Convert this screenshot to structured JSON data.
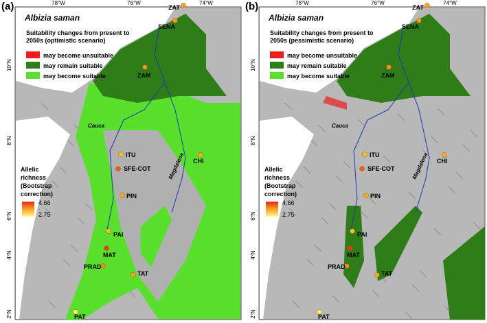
{
  "panels": [
    {
      "label": "(a)",
      "species": "Albizia saman",
      "legend_title": [
        "Suitability changes from present to",
        "2050s (optimistic scenario)"
      ],
      "legend_items": [
        "may become unsuitable",
        "may remain suitable",
        "may become suitable"
      ],
      "legend_colors": [
        "#ee1c1c",
        "#2e7d18",
        "#58e02c"
      ],
      "richness_title": [
        "Allelic",
        "richness",
        "(Bootstrap",
        "correction)"
      ],
      "richness_max": 4.66,
      "richness_min": 2.75,
      "rivers": [
        "Cauca",
        "Magdalena"
      ],
      "sites": [
        "ZAT",
        "SENA",
        "ZAM",
        "ITU",
        "SFE-COT",
        "PIN",
        "CHI",
        "PAI",
        "MAT",
        "PRAD",
        "TAT",
        "PAT"
      ],
      "lon_labels": [
        "78°W",
        "76°W",
        "74°W"
      ],
      "lat_labels": [
        "10°N",
        "8°N",
        "6°N",
        "4°N",
        "2°N"
      ]
    },
    {
      "label": "(b)",
      "species": "Albizia saman",
      "legend_title": [
        "Suitability changes from present to",
        "2050s (pessimistic scenario)"
      ],
      "legend_items": [
        "may become unsuitable",
        "may remain suitable",
        "may become suitable"
      ],
      "legend_colors": [
        "#ee1c1c",
        "#2e7d18",
        "#58e02c"
      ],
      "richness_title": [
        "Allelic",
        "richness",
        "(Bootstrap",
        "correction)"
      ],
      "richness_max": 4.66,
      "richness_min": 2.75,
      "rivers": [
        "Cauca",
        "Magdalena"
      ],
      "sites": [
        "ZAT",
        "SENA",
        "ZAM",
        "ITU",
        "SFE-COT",
        "PIN",
        "CHI",
        "PAI",
        "MAT",
        "PRAD",
        "TAT",
        "PAT"
      ],
      "lon_labels": [
        "78°W",
        "76°W",
        "74°W"
      ],
      "lat_labels": [
        "10°N",
        "8°N",
        "6°N",
        "4°N",
        "2°N"
      ]
    }
  ]
}
